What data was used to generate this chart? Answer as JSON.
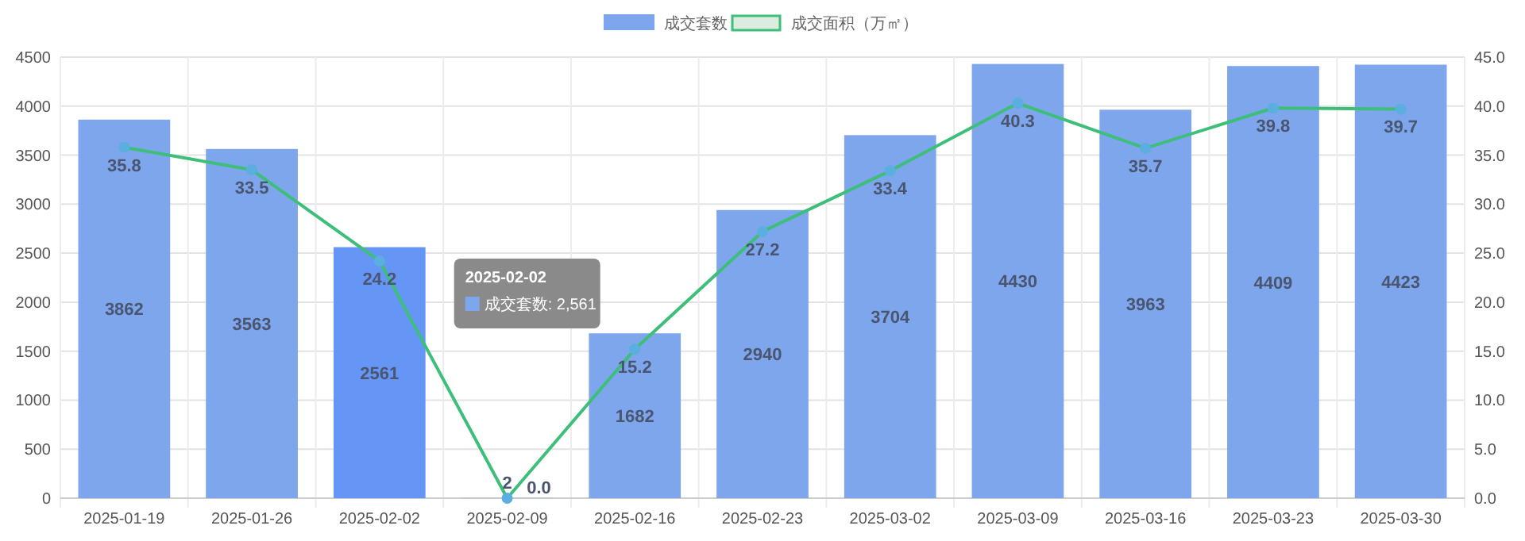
{
  "chart_data": {
    "type": "bar",
    "categories": [
      "2025-01-19",
      "2025-01-26",
      "2025-02-02",
      "2025-02-09",
      "2025-02-16",
      "2025-02-23",
      "2025-03-02",
      "2025-03-09",
      "2025-03-16",
      "2025-03-23",
      "2025-03-30"
    ],
    "series": [
      {
        "name": "成交套数",
        "color": "#7ea6ec",
        "colors": [
          "#7ea6ec",
          "#7ea6ec",
          "#6596f5",
          "#7ea6ec",
          "#7ea6ec",
          "#7ea6ec",
          "#7ea6ec",
          "#7ea6ec",
          "#7ea6ec",
          "#7ea6ec",
          "#7ea6ec"
        ],
        "values": [
          3862,
          3563,
          2561,
          2,
          1682,
          2940,
          3704,
          4430,
          3963,
          4409,
          4423
        ]
      },
      {
        "name": "成交面积（万㎡）",
        "type": "line",
        "axis": "y2",
        "color": "#3dbf7a",
        "values": [
          35.8,
          33.5,
          24.2,
          0.0,
          15.2,
          27.2,
          33.4,
          40.3,
          35.7,
          39.8,
          39.7
        ],
        "value_labels": [
          "35.8",
          "33.5",
          "24.2",
          "0.0",
          "15.2",
          "27.2",
          "33.4",
          "40.3",
          "35.7",
          "39.8",
          "39.7"
        ]
      }
    ],
    "ylim": [
      0,
      4500
    ],
    "yticks": [
      0,
      500,
      1000,
      1500,
      2000,
      2500,
      3000,
      3500,
      4000,
      4500
    ],
    "y2lim": [
      0,
      45
    ],
    "y2ticks": [
      {
        "value": 0,
        "label": "0.0"
      },
      {
        "value": 5,
        "label": "5.0"
      },
      {
        "value": 10,
        "label": "10.0"
      },
      {
        "value": 15,
        "label": "15.0"
      },
      {
        "value": 20,
        "label": "20.0"
      },
      {
        "value": 25,
        "label": "25.0"
      },
      {
        "value": 30,
        "label": "30.0"
      },
      {
        "value": 35,
        "label": "35.0"
      },
      {
        "value": 40,
        "label": "40.0"
      },
      {
        "value": 45,
        "label": "45.0"
      }
    ],
    "data_labels": true,
    "grid": true,
    "legend": "top",
    "marker": "circle",
    "line_style": "solid",
    "annotations": [
      "2025-02-02",
      "成交套数: 2,561"
    ]
  }
}
